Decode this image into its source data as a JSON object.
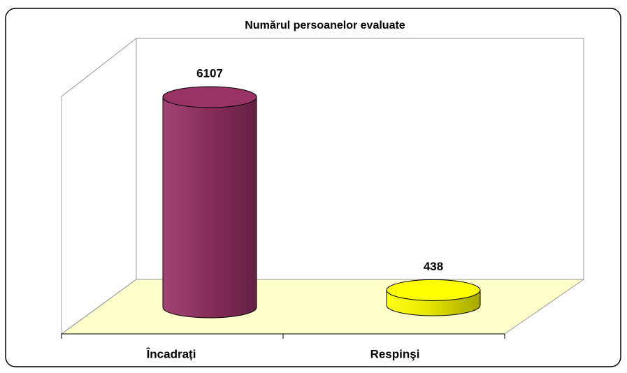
{
  "chart_data": {
    "type": "bar3d",
    "title": "Numărul persoanelor evaluate",
    "categories": [
      "Încadrați",
      "Respinşi"
    ],
    "values": [
      6107,
      438
    ],
    "colors": [
      "#993366",
      "#ffff00"
    ],
    "ylim": [
      0,
      7000
    ]
  }
}
